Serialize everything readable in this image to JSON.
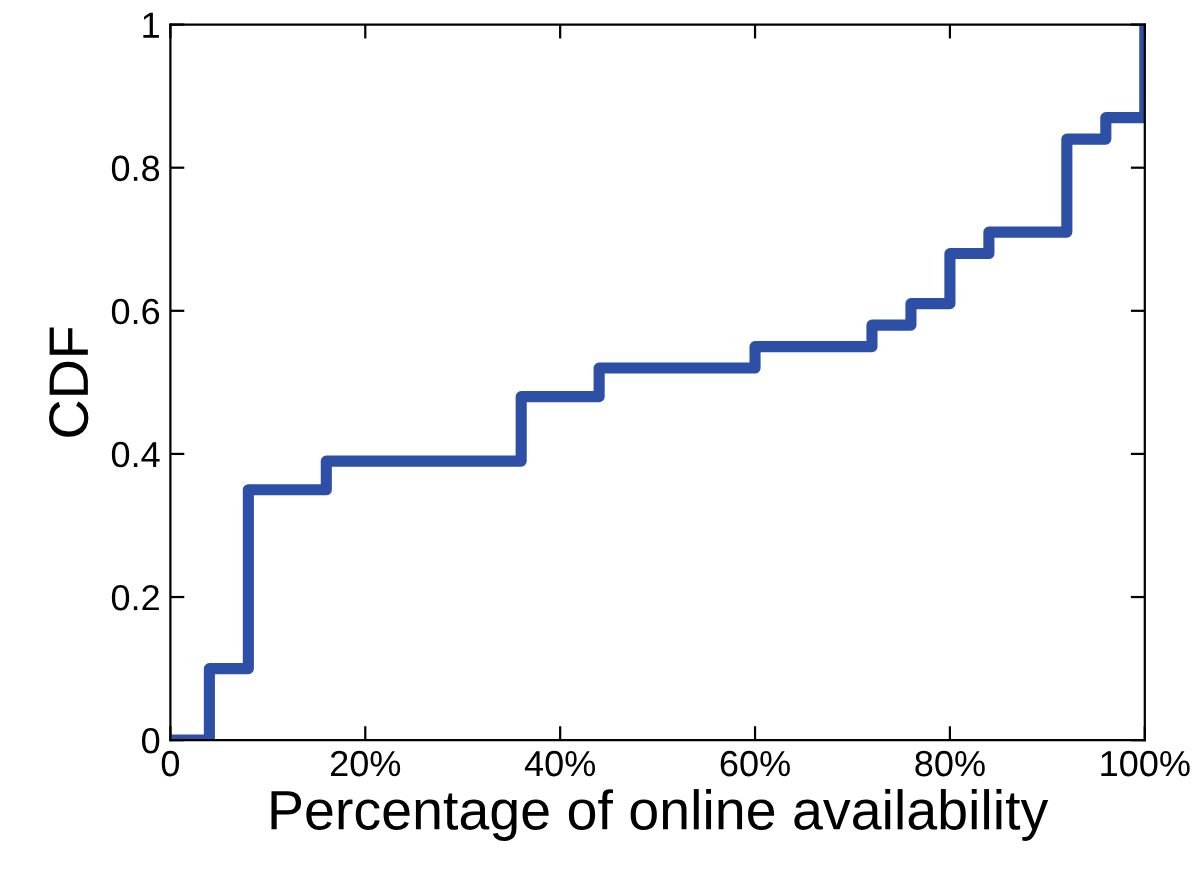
{
  "chart_data": {
    "type": "step",
    "xlabel": "Percentage of online availability",
    "ylabel": "CDF",
    "x": [
      0,
      4,
      8,
      16,
      36,
      44,
      60,
      72,
      76,
      80,
      84,
      92,
      96,
      100
    ],
    "series": [
      {
        "color": "#2e4fa6",
        "values": [
          0,
          0.1,
          0.35,
          0.39,
          0.48,
          0.52,
          0.55,
          0.58,
          0.61,
          0.68,
          0.71,
          0.84,
          0.87,
          1
        ]
      }
    ],
    "xlim": [
      0,
      100
    ],
    "ylim": [
      0,
      1
    ],
    "xticks": [
      0,
      {
        "value": 20,
        "label": "20%"
      },
      {
        "value": 40,
        "label": "40%"
      },
      {
        "value": 60,
        "label": "60%"
      },
      {
        "value": 80,
        "label": "80%"
      },
      {
        "value": 100,
        "label": "100%"
      }
    ],
    "yticks": [
      0,
      0.2,
      0.4,
      0.6,
      0.8,
      1
    ],
    "grid": false,
    "line_style": "solid",
    "marker": "none"
  }
}
